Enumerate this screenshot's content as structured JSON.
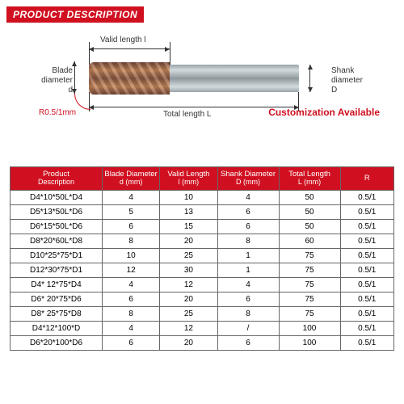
{
  "header": {
    "title": "PRODUCT DESCRIPTION"
  },
  "diagram": {
    "valid_length_label": "Valid length  l",
    "total_length_label": "Total length  L",
    "blade_diameter_label": "Blade\ndiameter",
    "blade_diameter_symbol": "d",
    "shank_diameter_label": "Shank\ndiameter",
    "shank_diameter_symbol": "D",
    "radius_label": "R0.5/1mm"
  },
  "customization_label": "Customization Available",
  "table": {
    "columns": [
      {
        "line1": "Product",
        "line2": "Description"
      },
      {
        "line1": "Blade Diameter",
        "line2": "d (mm)"
      },
      {
        "line1": "Valid Length",
        "line2": "l (mm)"
      },
      {
        "line1": "Shank Diameter",
        "line2": "D (mm)"
      },
      {
        "line1": "Total  Length",
        "line2": "L (mm)"
      },
      {
        "line1": "R",
        "line2": ""
      }
    ],
    "col_widths": [
      "24%",
      "15%",
      "15%",
      "16%",
      "16%",
      "14%"
    ],
    "rows": [
      [
        "D4*10*50L*D4",
        "4",
        "10",
        "4",
        "50",
        "0.5/1"
      ],
      [
        "D5*13*50L*D6",
        "5",
        "13",
        "6",
        "50",
        "0.5/1"
      ],
      [
        "D6*15*50L*D6",
        "6",
        "15",
        "6",
        "50",
        "0.5/1"
      ],
      [
        "D8*20*60L*D8",
        "8",
        "20",
        "8",
        "60",
        "0.5/1"
      ],
      [
        "D10*25*75*D1",
        "10",
        "25",
        "1",
        "75",
        "0.5/1"
      ],
      [
        "D12*30*75*D1",
        "12",
        "30",
        "1",
        "75",
        "0.5/1"
      ],
      [
        "D4* 12*75*D4",
        "4",
        "12",
        "4",
        "75",
        "0.5/1"
      ],
      [
        "D6* 20*75*D6",
        "6",
        "20",
        "6",
        "75",
        "0.5/1"
      ],
      [
        "D8* 25*75*D8",
        "8",
        "25",
        "8",
        "75",
        "0.5/1"
      ],
      [
        "D4*12*100*D",
        "4",
        "12",
        "/",
        "100",
        "0.5/1"
      ],
      [
        "D6*20*100*D6",
        "6",
        "20",
        "6",
        "100",
        "0.5/1"
      ]
    ]
  }
}
